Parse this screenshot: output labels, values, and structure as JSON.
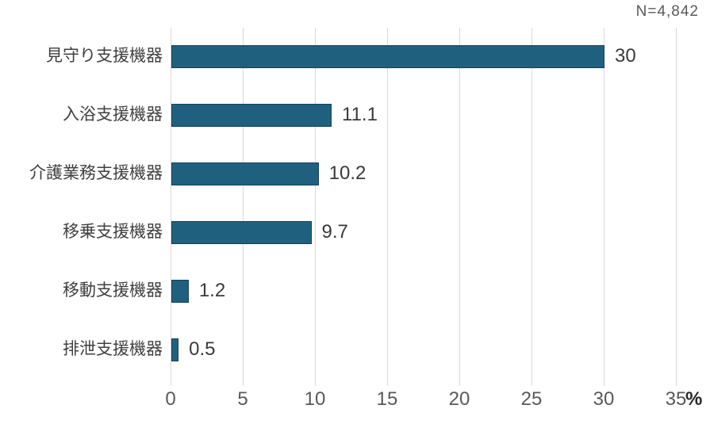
{
  "chart_data": {
    "type": "bar",
    "orientation": "horizontal",
    "n_label": "N=4,842",
    "categories": [
      "見守り支援機器",
      "入浴支援機器",
      "介護業務支援機器",
      "移乗支援機器",
      "移動支援機器",
      "排泄支援機器"
    ],
    "values": [
      30,
      11.1,
      10.2,
      9.7,
      1.2,
      0.5
    ],
    "value_labels": [
      "30",
      "11.1",
      "10.2",
      "9.7",
      "1.2",
      "0.5"
    ],
    "xlim": [
      0,
      35
    ],
    "xticks": [
      0,
      5,
      10,
      15,
      20,
      25,
      30,
      35
    ],
    "x_unit": "%",
    "grid": true,
    "legend": "none",
    "title": "",
    "xlabel": "",
    "ylabel": "",
    "bar_color": "#20607F",
    "bar_border_color": "#17405A",
    "grid_color": "#d9d9d9",
    "tick_text_color": "#595959",
    "label_text_color": "#3f3f3f"
  }
}
